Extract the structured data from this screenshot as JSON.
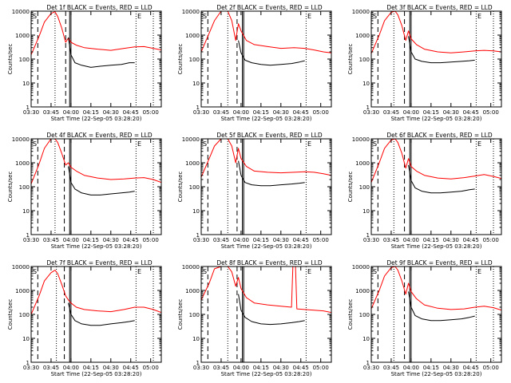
{
  "figure": {
    "xlabel": "Start Time (22-Sep-05 03:28:20)",
    "ylabel": "Counts/sec",
    "x_tick_labels": [
      "03:30",
      "03:45",
      "04:00",
      "04:15",
      "04:30",
      "04:45",
      "05:00"
    ],
    "y_tick_labels": [
      "1",
      "10",
      "100",
      "1000",
      "10000"
    ],
    "colors": {
      "events": "#000000",
      "lld": "#ff0000",
      "axes": "#000000"
    }
  },
  "chart_data": [
    {
      "type": "line",
      "title": "Det 1f BLACK = Events, RED = LLD",
      "corner_left": "S",
      "corner_right": "E",
      "y_scale": "log",
      "ylim": [
        1,
        10000
      ],
      "xlim": [
        "03:30",
        "05:08"
      ],
      "markers": {
        "dashed": [
          "03:35",
          "03:56"
        ],
        "dotted": [
          "03:48",
          "04:49",
          "05:02"
        ],
        "solid": [
          "03:59",
          "04:00"
        ]
      },
      "series": [
        {
          "x": [
            "03:30",
            "03:36",
            "03:40",
            "03:45",
            "03:48",
            "03:50",
            "03:53",
            "03:56",
            "03:58",
            "04:00",
            "04:04",
            "04:10",
            "04:20",
            "04:30",
            "04:40",
            "04:48",
            "04:55",
            "05:02",
            "05:08"
          ],
          "y": [
            150,
            900,
            3500,
            8000,
            9500,
            6000,
            2000,
            500,
            750,
            500,
            380,
            300,
            260,
            230,
            280,
            320,
            330,
            280,
            240
          ]
        },
        {
          "x": [
            "03:58",
            "04:00",
            "04:03",
            "04:08",
            "04:15",
            "04:22",
            "04:30",
            "04:38",
            "04:44",
            "04:48"
          ],
          "y": [
            800,
            150,
            70,
            55,
            45,
            50,
            55,
            60,
            70,
            70
          ]
        }
      ]
    },
    {
      "type": "line",
      "title": "Det 2f BLACK = Events, RED = LLD",
      "corner_left": "S",
      "corner_right": "E",
      "y_scale": "log",
      "ylim": [
        1,
        10000
      ],
      "xlim": [
        "03:30",
        "05:08"
      ],
      "markers": {
        "dashed": [
          "03:35",
          "03:57"
        ],
        "dotted": [
          "03:50",
          "04:49"
        ],
        "solid": [
          "04:01",
          "04:02"
        ]
      },
      "series": [
        {
          "x": [
            "03:30",
            "03:36",
            "03:40",
            "03:45",
            "03:48",
            "03:50",
            "03:53",
            "03:56",
            "03:58",
            "04:00",
            "04:04",
            "04:10",
            "04:20",
            "04:30",
            "04:40",
            "04:48",
            "04:55",
            "05:02",
            "05:08"
          ],
          "y": [
            200,
            1200,
            4000,
            10000,
            10000,
            10000,
            4000,
            600,
            3000,
            1500,
            600,
            400,
            330,
            280,
            300,
            280,
            240,
            200,
            180
          ]
        },
        {
          "x": [
            "03:58",
            "04:00",
            "04:03",
            "04:08",
            "04:15",
            "04:22",
            "04:30",
            "04:38",
            "04:44",
            "04:48"
          ],
          "y": [
            600,
            180,
            90,
            70,
            60,
            55,
            60,
            65,
            75,
            85
          ]
        }
      ]
    },
    {
      "type": "line",
      "title": "Det 3f BLACK = Events, RED = LLD",
      "corner_left": "S",
      "corner_right": "E",
      "y_scale": "log",
      "ylim": [
        1,
        10000
      ],
      "xlim": [
        "03:30",
        "05:08"
      ],
      "markers": {
        "dashed": [
          "03:35",
          "03:55"
        ],
        "dotted": [
          "03:47",
          "04:49",
          "05:02"
        ],
        "solid": [
          "03:59",
          "04:00"
        ]
      },
      "series": [
        {
          "x": [
            "03:30",
            "03:36",
            "03:40",
            "03:45",
            "03:48",
            "03:50",
            "03:53",
            "03:56",
            "03:58",
            "04:00",
            "04:04",
            "04:10",
            "04:20",
            "04:30",
            "04:40",
            "04:48",
            "04:55",
            "05:02",
            "05:08"
          ],
          "y": [
            170,
            1000,
            4000,
            9000,
            10000,
            7000,
            2500,
            600,
            1500,
            700,
            400,
            260,
            200,
            180,
            200,
            220,
            230,
            220,
            200
          ]
        },
        {
          "x": [
            "03:58",
            "04:00",
            "04:03",
            "04:08",
            "04:15",
            "04:22",
            "04:30",
            "04:38",
            "04:44",
            "04:48"
          ],
          "y": [
            900,
            200,
            100,
            80,
            70,
            70,
            75,
            80,
            85,
            90
          ]
        }
      ]
    },
    {
      "type": "line",
      "title": "Det 4f BLACK = Events, RED = LLD",
      "corner_left": "S",
      "corner_right": "E",
      "y_scale": "log",
      "ylim": [
        1,
        10000
      ],
      "xlim": [
        "03:30",
        "05:08"
      ],
      "markers": {
        "dashed": [
          "03:35",
          "03:55"
        ],
        "dotted": [
          "03:48",
          "04:49",
          "05:02"
        ],
        "solid": [
          "03:59",
          "04:00"
        ]
      },
      "series": [
        {
          "x": [
            "03:30",
            "03:36",
            "03:40",
            "03:45",
            "03:48",
            "03:50",
            "03:53",
            "03:56",
            "03:58",
            "04:00",
            "04:04",
            "04:10",
            "04:20",
            "04:30",
            "04:40",
            "04:48",
            "04:55",
            "05:02",
            "05:08"
          ],
          "y": [
            130,
            900,
            4000,
            10000,
            10000,
            7000,
            2500,
            800,
            1000,
            650,
            450,
            300,
            230,
            200,
            210,
            230,
            240,
            200,
            150
          ]
        },
        {
          "x": [
            "03:58",
            "04:00",
            "04:03",
            "04:08",
            "04:15",
            "04:22",
            "04:30",
            "04:38",
            "04:44",
            "04:48"
          ],
          "y": [
            700,
            150,
            80,
            55,
            45,
            45,
            50,
            55,
            60,
            65
          ]
        }
      ]
    },
    {
      "type": "line",
      "title": "Det 5f BLACK = Events, RED = LLD",
      "corner_left": "S",
      "corner_right": "E",
      "y_scale": "log",
      "ylim": [
        1,
        10000
      ],
      "xlim": [
        "03:30",
        "05:08"
      ],
      "markers": {
        "dashed": [
          "03:35",
          "03:57"
        ],
        "dotted": [
          "03:50",
          "04:49"
        ],
        "solid": [
          "04:01",
          "04:02"
        ]
      },
      "series": [
        {
          "x": [
            "03:30",
            "03:36",
            "03:40",
            "03:45",
            "03:48",
            "03:50",
            "03:53",
            "03:56",
            "03:58",
            "04:00",
            "04:04",
            "04:10",
            "04:20",
            "04:30",
            "04:40",
            "04:48",
            "04:55",
            "05:02",
            "05:08"
          ],
          "y": [
            250,
            1500,
            5000,
            10000,
            10000,
            10000,
            5000,
            1000,
            4000,
            1500,
            700,
            450,
            400,
            380,
            400,
            420,
            400,
            350,
            300
          ]
        },
        {
          "x": [
            "03:58",
            "04:00",
            "04:03",
            "04:08",
            "04:15",
            "04:22",
            "04:30",
            "04:38",
            "04:44",
            "04:48"
          ],
          "y": [
            1200,
            300,
            150,
            120,
            110,
            110,
            120,
            130,
            140,
            150
          ]
        }
      ]
    },
    {
      "type": "line",
      "title": "Det 6f BLACK = Events, RED = LLD",
      "corner_left": "S",
      "corner_right": "E",
      "y_scale": "log",
      "ylim": [
        1,
        10000
      ],
      "xlim": [
        "03:30",
        "05:08"
      ],
      "markers": {
        "dashed": [
          "03:35",
          "03:55"
        ],
        "dotted": [
          "03:47",
          "04:49",
          "05:02"
        ],
        "solid": [
          "03:59",
          "04:00"
        ]
      },
      "series": [
        {
          "x": [
            "03:30",
            "03:36",
            "03:40",
            "03:45",
            "03:48",
            "03:50",
            "03:53",
            "03:56",
            "03:58",
            "04:00",
            "04:04",
            "04:10",
            "04:20",
            "04:30",
            "04:40",
            "04:48",
            "04:55",
            "05:02",
            "05:08"
          ],
          "y": [
            150,
            1000,
            4000,
            9000,
            10000,
            7000,
            2500,
            600,
            1500,
            700,
            450,
            300,
            230,
            210,
            240,
            280,
            320,
            270,
            220
          ]
        },
        {
          "x": [
            "03:58",
            "04:00",
            "04:03",
            "04:08",
            "04:15",
            "04:22",
            "04:30",
            "04:38",
            "04:44",
            "04:48"
          ],
          "y": [
            800,
            180,
            90,
            65,
            55,
            55,
            60,
            65,
            75,
            80
          ]
        }
      ]
    },
    {
      "type": "line",
      "title": "Det 7f BLACK = Events, RED = LLD",
      "corner_left": "S",
      "corner_right": "E",
      "y_scale": "log",
      "ylim": [
        1,
        10000
      ],
      "xlim": [
        "03:30",
        "05:08"
      ],
      "markers": {
        "dashed": [
          "03:35",
          "03:55"
        ],
        "dotted": [
          "03:49",
          "04:49",
          "05:02"
        ],
        "solid": [
          "03:59",
          "04:00"
        ]
      },
      "series": [
        {
          "x": [
            "03:30",
            "03:36",
            "03:40",
            "03:45",
            "03:48",
            "03:50",
            "03:53",
            "03:56",
            "03:58",
            "04:00",
            "04:04",
            "04:10",
            "04:20",
            "04:30",
            "04:40",
            "04:48",
            "04:55",
            "05:02",
            "05:08"
          ],
          "y": [
            100,
            600,
            2500,
            5500,
            7000,
            5000,
            1800,
            600,
            400,
            300,
            200,
            160,
            140,
            130,
            160,
            200,
            200,
            160,
            120
          ]
        },
        {
          "x": [
            "03:58",
            "04:00",
            "04:03",
            "04:08",
            "04:15",
            "04:22",
            "04:30",
            "04:38",
            "04:44",
            "04:48"
          ],
          "y": [
            300,
            100,
            55,
            40,
            35,
            35,
            40,
            45,
            50,
            55
          ]
        }
      ]
    },
    {
      "type": "line",
      "title": "Det 8f BLACK = Events, RED = LLD",
      "corner_left": "S",
      "corner_right": "E",
      "y_scale": "log",
      "ylim": [
        1,
        10000
      ],
      "xlim": [
        "03:30",
        "05:08"
      ],
      "markers": {
        "dashed": [
          "03:35",
          "03:57"
        ],
        "dotted": [
          "03:50",
          "04:49"
        ],
        "solid": [
          "04:01",
          "04:02"
        ]
      },
      "series": [
        {
          "x": [
            "03:30",
            "03:36",
            "03:40",
            "03:45",
            "03:48",
            "03:50",
            "03:53",
            "03:56",
            "03:58",
            "04:00",
            "04:04",
            "04:10",
            "04:20",
            "04:30",
            "04:38",
            "04:39",
            "04:41",
            "04:42",
            "04:48",
            "04:55",
            "05:02",
            "05:08"
          ],
          "y": [
            400,
            2000,
            8000,
            10000,
            10000,
            10000,
            6000,
            1500,
            3500,
            1200,
            500,
            300,
            250,
            220,
            200,
            10000,
            10000,
            170,
            160,
            150,
            140,
            120
          ]
        },
        {
          "x": [
            "03:58",
            "04:00",
            "04:03",
            "04:08",
            "04:15",
            "04:22",
            "04:30",
            "04:38",
            "04:44",
            "04:48"
          ],
          "y": [
            700,
            150,
            75,
            50,
            40,
            38,
            40,
            45,
            50,
            55
          ]
        }
      ]
    },
    {
      "type": "line",
      "title": "Det 9f BLACK = Events, RED = LLD",
      "corner_left": "S",
      "corner_right": "E",
      "y_scale": "log",
      "ylim": [
        1,
        10000
      ],
      "xlim": [
        "03:30",
        "05:08"
      ],
      "markers": {
        "dashed": [
          "03:35",
          "03:55"
        ],
        "dotted": [
          "03:47",
          "04:49",
          "05:02"
        ],
        "solid": [
          "03:59",
          "04:00"
        ]
      },
      "series": [
        {
          "x": [
            "03:30",
            "03:36",
            "03:40",
            "03:45",
            "03:48",
            "03:50",
            "03:53",
            "03:56",
            "03:58",
            "04:00",
            "04:04",
            "04:10",
            "04:20",
            "04:30",
            "04:40",
            "04:48",
            "04:55",
            "05:02",
            "05:08"
          ],
          "y": [
            170,
            1000,
            4000,
            9000,
            10000,
            7000,
            2500,
            700,
            2000,
            900,
            450,
            250,
            180,
            160,
            170,
            200,
            220,
            190,
            150
          ]
        },
        {
          "x": [
            "03:58",
            "04:00",
            "04:03",
            "04:08",
            "04:15",
            "04:22",
            "04:30",
            "04:38",
            "04:44",
            "04:48"
          ],
          "y": [
            900,
            200,
            90,
            65,
            55,
            55,
            60,
            65,
            75,
            85
          ]
        }
      ]
    }
  ]
}
